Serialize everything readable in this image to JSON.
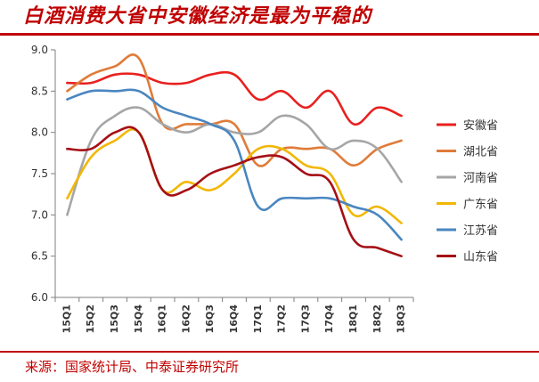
{
  "title": "白酒消费大省中安徽经济是最为平稳的",
  "source": "来源：国家统计局、中泰证券研究所",
  "chart_data": {
    "type": "line",
    "categories": [
      "15Q1",
      "15Q2",
      "15Q3",
      "15Q4",
      "16Q1",
      "16Q2",
      "16Q3",
      "16Q4",
      "17Q1",
      "17Q2",
      "17Q3",
      "17Q4",
      "18Q1",
      "18Q2",
      "18Q3"
    ],
    "ylim": [
      6.0,
      9.0
    ],
    "yticks": [
      "6.0",
      "6.5",
      "7.0",
      "7.5",
      "8.0",
      "8.5",
      "9.0"
    ],
    "grid": false,
    "legend_position": "right",
    "series": [
      {
        "name": "安徽省",
        "color": "#e8201f",
        "values": [
          8.6,
          8.6,
          8.7,
          8.7,
          8.6,
          8.6,
          8.7,
          8.7,
          8.4,
          8.5,
          8.3,
          8.5,
          8.1,
          8.3,
          8.2
        ]
      },
      {
        "name": "湖北省",
        "color": "#e07b39",
        "values": [
          8.5,
          8.7,
          8.8,
          8.9,
          8.1,
          8.1,
          8.1,
          8.1,
          7.6,
          7.8,
          7.8,
          7.8,
          7.6,
          7.8,
          7.9
        ]
      },
      {
        "name": "河南省",
        "color": "#a6a6a6",
        "values": [
          7.0,
          7.9,
          8.2,
          8.3,
          8.1,
          8.0,
          8.1,
          8.0,
          8.0,
          8.2,
          8.1,
          7.8,
          7.9,
          7.8,
          7.4
        ]
      },
      {
        "name": "广东省",
        "color": "#f2b705",
        "values": [
          7.2,
          7.7,
          7.9,
          8.0,
          7.3,
          7.4,
          7.3,
          7.5,
          7.8,
          7.8,
          7.6,
          7.5,
          7.0,
          7.1,
          6.9
        ]
      },
      {
        "name": "江苏省",
        "color": "#4a86c0",
        "values": [
          8.4,
          8.5,
          8.5,
          8.5,
          8.3,
          8.2,
          8.1,
          7.9,
          7.1,
          7.2,
          7.2,
          7.2,
          7.1,
          7.0,
          6.7
        ]
      },
      {
        "name": "山东省",
        "color": "#a50f15",
        "values": [
          7.8,
          7.8,
          8.0,
          8.0,
          7.3,
          7.3,
          7.5,
          7.6,
          7.7,
          7.7,
          7.5,
          7.4,
          6.7,
          6.6,
          6.5
        ]
      }
    ]
  }
}
